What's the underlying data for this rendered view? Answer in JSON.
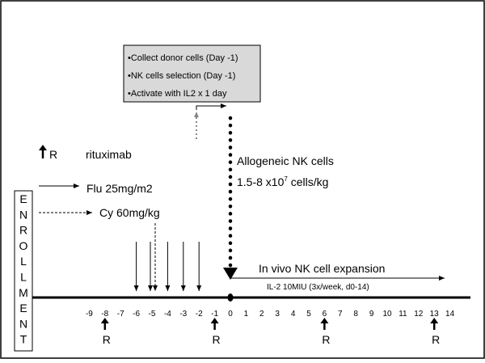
{
  "protocol_box": {
    "lines": [
      "•Collect donor cells (Day -1)",
      "•NK cells selection (Day -1)",
      "•Activate with IL2 x 1 day"
    ]
  },
  "legend": {
    "rituximab_symbol": "R",
    "rituximab_label": "rituximab",
    "flu_label": "Flu 25mg/m2",
    "cy_label": "Cy 60mg/kg"
  },
  "infusion": {
    "title": "Allogeneic NK cells",
    "dose_prefix": "1.5-8 x10",
    "dose_exp": "7",
    "dose_suffix": " cells/kg"
  },
  "expansion": {
    "label": "In vivo NK cell expansion",
    "il2_label": "IL-2 10MIU (3x/week, d0-14)"
  },
  "enrollment_letters": [
    "E",
    "N",
    "R",
    "O",
    "L",
    "L",
    "M",
    "E",
    "N",
    "T"
  ],
  "timeline": {
    "days": [
      -9,
      -8,
      -7,
      -6,
      -5,
      -4,
      -3,
      -2,
      -1,
      0,
      1,
      2,
      3,
      4,
      5,
      6,
      7,
      8,
      9,
      10,
      11,
      12,
      13,
      14
    ],
    "flu_days": [
      -6,
      -5,
      -4,
      -3,
      -2
    ],
    "cy_day": -5,
    "rituximab_days": [
      -8,
      -1,
      6,
      13
    ],
    "rituximab_label": "R",
    "infusion_day": 0
  }
}
